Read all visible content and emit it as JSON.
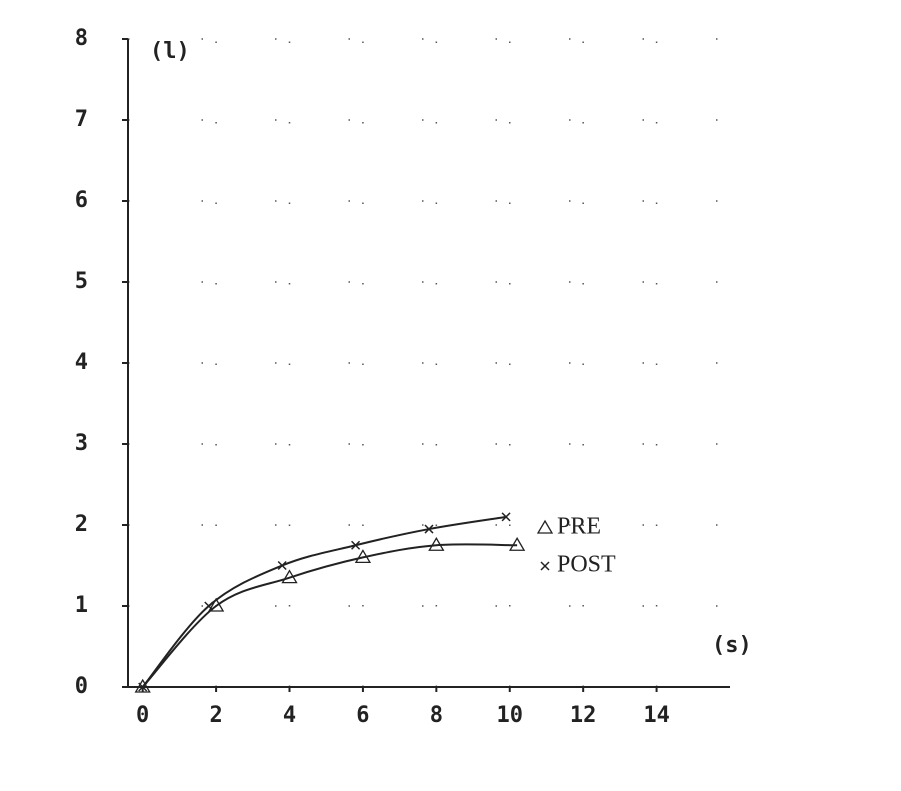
{
  "chart_data": {
    "type": "line",
    "ylabel": "(l)",
    "xlabel": "(s)",
    "xlim": [
      -0.4,
      16
    ],
    "xticks": [
      0,
      2,
      4,
      6,
      8,
      10,
      12,
      14
    ],
    "ylim": [
      0,
      8
    ],
    "yticks": [
      0,
      1,
      2,
      3,
      4,
      5,
      6,
      7,
      8
    ],
    "grid": true,
    "legend": "right",
    "series": [
      {
        "name": "PRE",
        "color": "#222222",
        "marker": "triangle",
        "x": [
          0,
          2,
          4,
          6,
          8,
          10.2
        ],
        "values": [
          0,
          1.0,
          1.35,
          1.6,
          1.75,
          1.75
        ]
      },
      {
        "name": "POST",
        "color": "#222222",
        "marker": "x",
        "x": [
          0,
          1.8,
          3.8,
          5.8,
          7.8,
          9.9
        ],
        "values": [
          0,
          1.0,
          1.5,
          1.75,
          1.95,
          2.1
        ]
      }
    ]
  }
}
